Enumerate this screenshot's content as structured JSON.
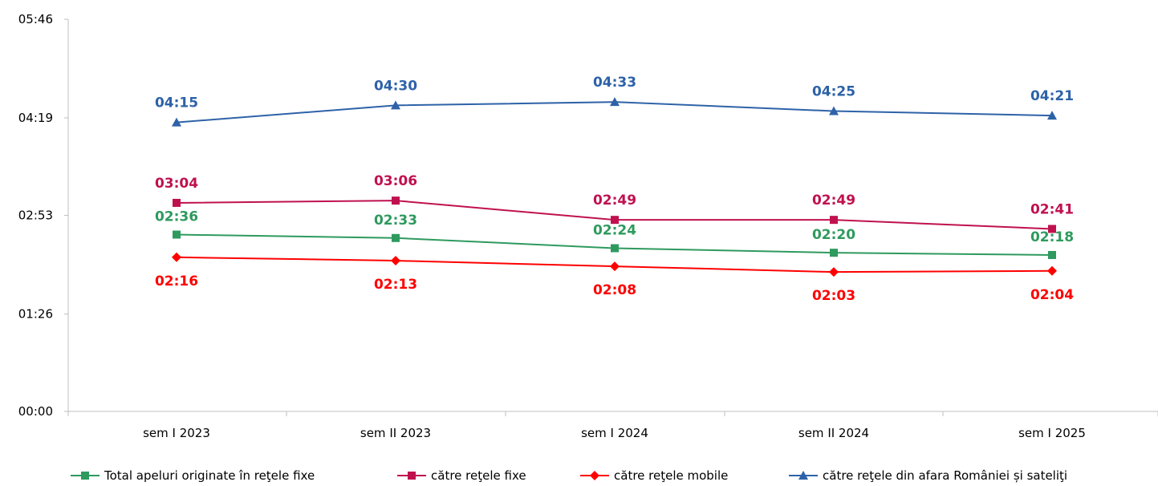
{
  "chart_data": {
    "type": "line",
    "title": "",
    "xlabel": "",
    "ylabel": "",
    "categories": [
      "sem I 2023",
      "sem II 2023",
      "sem I 2024",
      "sem II 2024",
      "sem I 2025"
    ],
    "y_ticks": [
      "00:00",
      "01:26",
      "02:53",
      "04:19",
      "05:46"
    ],
    "ylim_seconds": [
      0,
      346
    ],
    "grid": false,
    "legend_position": "bottom",
    "series": [
      {
        "name": "Total apeluri originate în reţele fixe",
        "color": "#2e9a5e",
        "marker": "square",
        "labels": [
          "02:36",
          "02:33",
          "02:24",
          "02:20",
          "02:18"
        ],
        "label_position": "above"
      },
      {
        "name": "către reţele fixe",
        "color": "#c0114f",
        "marker": "square",
        "labels": [
          "03:04",
          "03:06",
          "02:49",
          "02:49",
          "02:41"
        ],
        "label_position": "above"
      },
      {
        "name": "către reţele mobile",
        "color": "#ff0000",
        "marker": "diamond",
        "labels": [
          "02:16",
          "02:13",
          "02:08",
          "02:03",
          "02:04"
        ],
        "label_position": "below"
      },
      {
        "name": "către reţele din afara României și sateliţi",
        "color": "#2e62a8",
        "marker": "triangle",
        "labels": [
          "04:15",
          "04:30",
          "04:33",
          "04:25",
          "04:21"
        ],
        "label_position": "above"
      }
    ]
  }
}
